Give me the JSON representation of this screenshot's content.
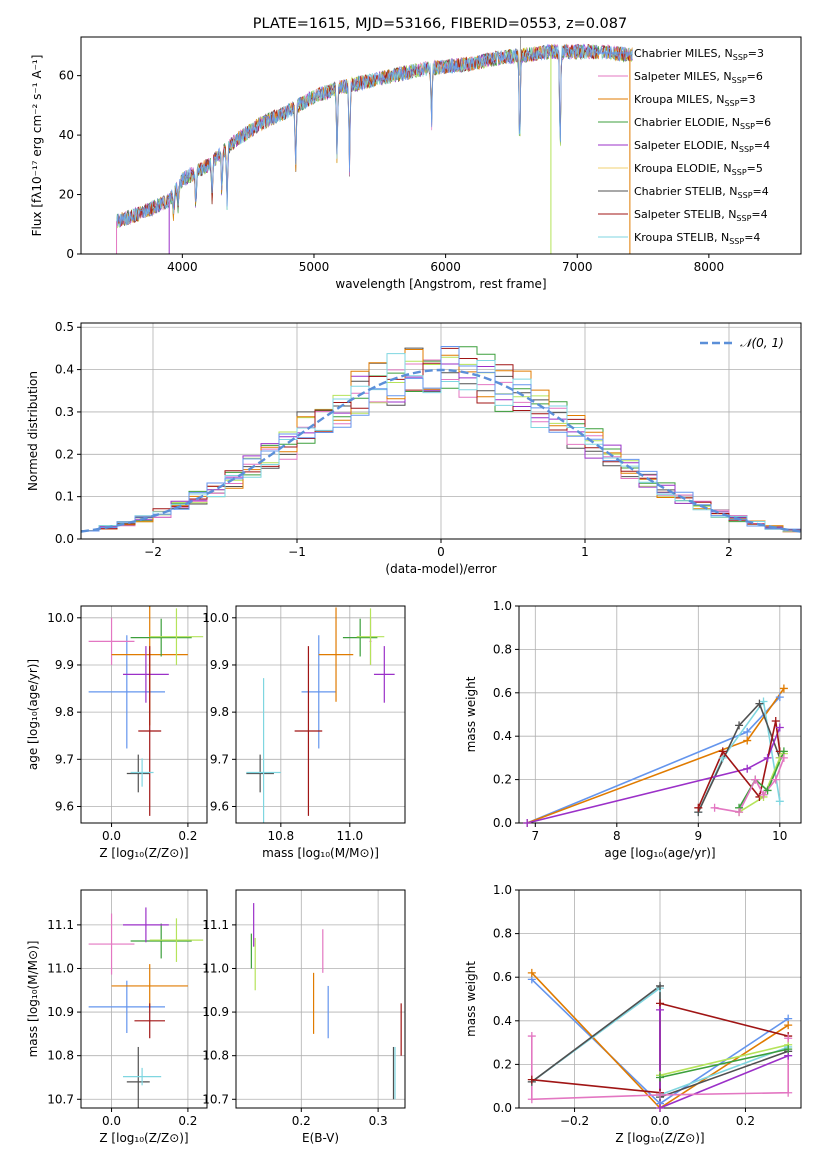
{
  "figure": {
    "title": "PLATE=1615, MJD=53166, FIBERID=0553, z=0.087"
  },
  "colors": {
    "series": [
      "#6495ED",
      "#E377C2",
      "#E07B00",
      "#3C9F3C",
      "#9B30C8",
      "#F0D070",
      "#505050",
      "#A01515",
      "#7FD6E0"
    ],
    "lime": "#B5E35A",
    "gauss": "#5B8FD8",
    "grid": "#b0b0b0"
  },
  "chart_data": [
    {
      "id": "spectrum",
      "type": "line",
      "title": "PLATE=1615, MJD=53166, FIBERID=0553, z=0.087",
      "xlabel": "wavelength [Angstrom, rest frame]",
      "ylabel": "Flux [fλ10⁻¹⁷ erg cm⁻² s⁻¹ A⁻¹]",
      "xlim": [
        3230,
        8700
      ],
      "ylim": [
        0,
        73
      ],
      "xticks": [
        4000,
        5000,
        6000,
        7000,
        8000
      ],
      "yticks": [
        0,
        20,
        40,
        60
      ],
      "continuum": [
        [
          3500,
          11
        ],
        [
          3700,
          14
        ],
        [
          3900,
          18
        ],
        [
          4000,
          25
        ],
        [
          4200,
          30
        ],
        [
          4400,
          38
        ],
        [
          4600,
          44
        ],
        [
          4800,
          48
        ],
        [
          5000,
          53
        ],
        [
          5200,
          56
        ],
        [
          5400,
          58
        ],
        [
          5600,
          60
        ],
        [
          5800,
          62
        ],
        [
          6000,
          63
        ],
        [
          6200,
          64
        ],
        [
          6400,
          66
        ],
        [
          6600,
          67
        ],
        [
          6800,
          68
        ],
        [
          7000,
          68
        ],
        [
          7200,
          68
        ],
        [
          7400,
          67
        ]
      ],
      "absorption_lines": [
        [
          3933,
          13
        ],
        [
          3968,
          12
        ],
        [
          4102,
          20
        ],
        [
          4226,
          23
        ],
        [
          4300,
          24
        ],
        [
          4340,
          34
        ],
        [
          4861,
          38
        ],
        [
          5175,
          43
        ],
        [
          5270,
          52
        ],
        [
          5893,
          35
        ],
        [
          6563,
          58
        ],
        [
          6870,
          60
        ]
      ],
      "series": [
        {
          "name": "Chabrier MILES, N_SSP=3",
          "label_main": "Chabrier MILES, N",
          "label_sub": "SSP",
          "label_end": "=3"
        },
        {
          "name": "Salpeter MILES, N_SSP=6",
          "label_main": "Salpeter MILES, N",
          "label_sub": "SSP",
          "label_end": "=6"
        },
        {
          "name": "Kroupa MILES, N_SSP=3",
          "label_main": "Kroupa MILES, N",
          "label_sub": "SSP",
          "label_end": "=3"
        },
        {
          "name": "Chabrier ELODIE, N_SSP=6",
          "label_main": "Chabrier ELODIE, N",
          "label_sub": "SSP",
          "label_end": "=6"
        },
        {
          "name": "Salpeter ELODIE, N_SSP=4",
          "label_main": "Salpeter ELODIE, N",
          "label_sub": "SSP",
          "label_end": "=4"
        },
        {
          "name": "Kroupa ELODIE, N_SSP=5",
          "label_main": "Kroupa ELODIE, N",
          "label_sub": "SSP",
          "label_end": "=5"
        },
        {
          "name": "Chabrier STELIB, N_SSP=4",
          "label_main": "Chabrier STELIB, N",
          "label_sub": "SSP",
          "label_end": "=4"
        },
        {
          "name": "Salpeter STELIB, N_SSP=4",
          "label_main": "Salpeter STELIB, N",
          "label_sub": "SSP",
          "label_end": "=4"
        },
        {
          "name": "Kroupa STELIB, N_SSP=4",
          "label_main": "Kroupa STELIB, N",
          "label_sub": "SSP",
          "label_end": "=4"
        }
      ],
      "legend": "top-right"
    },
    {
      "id": "residuals",
      "type": "line",
      "xlabel": "(data-model)/error",
      "ylabel": "Normed distribution",
      "xlim": [
        -2.5,
        2.5
      ],
      "ylim": [
        0,
        0.51
      ],
      "xticks": [
        -2,
        -1,
        0,
        1,
        2
      ],
      "yticks": [
        0.0,
        0.1,
        0.2,
        0.3,
        0.4,
        0.5
      ],
      "bin_width": 0.125,
      "grid": true,
      "legend": "top-right",
      "gauss_label": "𝒩(0, 1)"
    },
    {
      "id": "age_vs_Z",
      "type": "scatter",
      "xlabel": "Z [log₁₀(Z/Z⊙)]",
      "ylabel": "age  [log₁₀(age/yr)]",
      "xlim": [
        -0.08,
        0.25
      ],
      "ylim": [
        9.565,
        10.025
      ],
      "xticks": [
        0.0,
        0.2
      ],
      "yticks": [
        9.6,
        9.7,
        9.8,
        9.9,
        10.0
      ],
      "grid": true,
      "points": [
        {
          "c": 0,
          "x": 0.04,
          "y": 9.843,
          "xerr": 0.1,
          "yerr": 0.12
        },
        {
          "c": 1,
          "x": 0.0,
          "y": 9.95,
          "xerr": 0.06,
          "yerr": 0.05
        },
        {
          "c": 2,
          "x": 0.1,
          "y": 9.922,
          "xerr": 0.1,
          "yerr": 0.15
        },
        {
          "c": 3,
          "x": 0.13,
          "y": 9.958,
          "xerr": 0.08,
          "yerr": 0.04
        },
        {
          "c": 4,
          "x": 0.09,
          "y": 9.88,
          "xerr": 0.06,
          "yerr": 0.06
        },
        {
          "c": 9,
          "x": 0.17,
          "y": 9.96,
          "xerr": 0.07,
          "yerr": 0.06
        },
        {
          "c": 6,
          "x": 0.07,
          "y": 9.67,
          "xerr": 0.03,
          "yerr": 0.04
        },
        {
          "c": 7,
          "x": 0.1,
          "y": 9.76,
          "xerr": 0.03,
          "yerr": 0.18
        },
        {
          "c": 8,
          "x": 0.08,
          "y": 9.672,
          "xerr": 0.03,
          "yerr": 0.03
        }
      ]
    },
    {
      "id": "age_vs_mass",
      "type": "scatter",
      "xlabel": "mass [log₁₀(M/M⊙)]",
      "ylabel": "",
      "xlim": [
        10.67,
        11.16
      ],
      "ylim": [
        9.565,
        10.025
      ],
      "xticks": [
        10.8,
        11.0
      ],
      "yticks": [
        9.6,
        9.7,
        9.8,
        9.9,
        10.0
      ],
      "grid": true,
      "points": [
        {
          "c": 0,
          "x": 10.91,
          "y": 9.843,
          "xerr": 0.05,
          "yerr": 0.12
        },
        {
          "c": 1,
          "x": 11.06,
          "y": 9.95,
          "xerr": 0.003,
          "yerr": 0.05
        },
        {
          "c": 2,
          "x": 10.96,
          "y": 9.922,
          "xerr": 0.05,
          "yerr": 0.1
        },
        {
          "c": 3,
          "x": 11.03,
          "y": 9.958,
          "xerr": 0.05,
          "yerr": 0.04
        },
        {
          "c": 4,
          "x": 11.1,
          "y": 9.88,
          "xerr": 0.03,
          "yerr": 0.06
        },
        {
          "c": 9,
          "x": 11.06,
          "y": 9.96,
          "xerr": 0.04,
          "yerr": 0.06
        },
        {
          "c": 6,
          "x": 10.74,
          "y": 9.67,
          "xerr": 0.04,
          "yerr": 0.04
        },
        {
          "c": 7,
          "x": 10.88,
          "y": 9.76,
          "xerr": 0.04,
          "yerr": 0.18
        },
        {
          "c": 8,
          "x": 10.75,
          "y": 9.672,
          "xerr": 0.05,
          "yerr": 0.2
        }
      ]
    },
    {
      "id": "weight_vs_age",
      "type": "line",
      "xlabel": "age  [log₁₀(age/yr)]",
      "ylabel": "mass weight",
      "xlim": [
        6.8,
        10.26
      ],
      "ylim": [
        0,
        1
      ],
      "xticks": [
        7,
        8,
        9,
        10
      ],
      "yticks": [
        0.0,
        0.2,
        0.4,
        0.6,
        0.8,
        1.0
      ],
      "grid": true,
      "series": [
        {
          "c": 0,
          "pts": [
            [
              6.9,
              0.0
            ],
            [
              9.6,
              0.42
            ],
            [
              10.0,
              0.58
            ]
          ]
        },
        {
          "c": 2,
          "pts": [
            [
              6.9,
              0.0
            ],
            [
              9.6,
              0.38
            ],
            [
              10.05,
              0.62
            ]
          ]
        },
        {
          "c": 8,
          "pts": [
            [
              9.0,
              0.05
            ],
            [
              9.3,
              0.3
            ],
            [
              9.8,
              0.56
            ],
            [
              10.0,
              0.1
            ]
          ]
        },
        {
          "c": 6,
          "pts": [
            [
              9.0,
              0.05
            ],
            [
              9.5,
              0.45
            ],
            [
              9.75,
              0.55
            ],
            [
              10.0,
              0.3
            ]
          ]
        },
        {
          "c": 4,
          "pts": [
            [
              6.9,
              0.0
            ],
            [
              9.6,
              0.25
            ],
            [
              9.85,
              0.3
            ],
            [
              10.0,
              0.44
            ]
          ]
        },
        {
          "c": 7,
          "pts": [
            [
              9.0,
              0.07
            ],
            [
              9.3,
              0.33
            ],
            [
              9.75,
              0.12
            ],
            [
              9.95,
              0.47
            ],
            [
              10.0,
              0.33
            ]
          ]
        },
        {
          "c": 9,
          "pts": [
            [
              9.5,
              0.05
            ],
            [
              9.8,
              0.12
            ],
            [
              10.0,
              0.3
            ],
            [
              10.05,
              0.32
            ]
          ]
        },
        {
          "c": 3,
          "pts": [
            [
              9.5,
              0.07
            ],
            [
              9.7,
              0.2
            ],
            [
              9.85,
              0.15
            ],
            [
              10.05,
              0.33
            ]
          ]
        },
        {
          "c": 1,
          "pts": [
            [
              9.2,
              0.07
            ],
            [
              9.5,
              0.05
            ],
            [
              9.7,
              0.2
            ],
            [
              9.8,
              0.13
            ],
            [
              9.95,
              0.2
            ],
            [
              10.05,
              0.3
            ]
          ]
        }
      ]
    },
    {
      "id": "mass_vs_Z",
      "type": "scatter",
      "xlabel": "Z [log₁₀(Z/Z⊙)]",
      "ylabel": "mass [log₁₀(M/M⊙)]",
      "xlim": [
        -0.08,
        0.25
      ],
      "ylim": [
        10.68,
        11.18
      ],
      "xticks": [
        0.0,
        0.2
      ],
      "yticks": [
        10.7,
        10.8,
        10.9,
        11.0,
        11.1
      ],
      "grid": true,
      "points": [
        {
          "c": 0,
          "x": 0.04,
          "y": 10.912,
          "xerr": 0.1,
          "yerr": 0.06
        },
        {
          "c": 1,
          "x": 0.0,
          "y": 11.056,
          "xerr": 0.06,
          "yerr": 0.07
        },
        {
          "c": 2,
          "x": 0.1,
          "y": 10.96,
          "xerr": 0.1,
          "yerr": 0.05
        },
        {
          "c": 3,
          "x": 0.13,
          "y": 11.063,
          "xerr": 0.08,
          "yerr": 0.04
        },
        {
          "c": 4,
          "x": 0.09,
          "y": 11.1,
          "xerr": 0.06,
          "yerr": 0.04
        },
        {
          "c": 9,
          "x": 0.17,
          "y": 11.065,
          "xerr": 0.07,
          "yerr": 0.05
        },
        {
          "c": 6,
          "x": 0.07,
          "y": 10.74,
          "xerr": 0.03,
          "yerr": 0.08
        },
        {
          "c": 7,
          "x": 0.1,
          "y": 10.88,
          "xerr": 0.04,
          "yerr": 0.04
        },
        {
          "c": 8,
          "x": 0.08,
          "y": 10.752,
          "xerr": 0.05,
          "yerr": 0.02
        }
      ]
    },
    {
      "id": "mass_vs_ebv",
      "type": "scatter",
      "xlabel": "E(B-V)",
      "ylabel": "",
      "xlim": [
        0.115,
        0.335
      ],
      "ylim": [
        10.68,
        11.18
      ],
      "xticks": [
        0.2,
        0.3
      ],
      "yticks": [
        10.7,
        10.8,
        10.9,
        11.0,
        11.1
      ],
      "grid": true,
      "points": [
        {
          "c": 0,
          "x": 0.235,
          "y": 10.9,
          "xerr": 0.0,
          "yerr": 0.06
        },
        {
          "c": 1,
          "x": 0.228,
          "y": 11.04,
          "xerr": 0.0,
          "yerr": 0.05
        },
        {
          "c": 2,
          "x": 0.216,
          "y": 10.92,
          "xerr": 0.0,
          "yerr": 0.07
        },
        {
          "c": 3,
          "x": 0.135,
          "y": 11.04,
          "xerr": 0.0,
          "yerr": 0.04
        },
        {
          "c": 4,
          "x": 0.138,
          "y": 11.1,
          "xerr": 0.0,
          "yerr": 0.05
        },
        {
          "c": 9,
          "x": 0.14,
          "y": 11.01,
          "xerr": 0.0,
          "yerr": 0.06
        },
        {
          "c": 6,
          "x": 0.32,
          "y": 10.76,
          "xerr": 0.0,
          "yerr": 0.06
        },
        {
          "c": 7,
          "x": 0.33,
          "y": 10.86,
          "xerr": 0.0,
          "yerr": 0.06
        },
        {
          "c": 8,
          "x": 0.322,
          "y": 10.76,
          "xerr": 0.0,
          "yerr": 0.06
        }
      ]
    },
    {
      "id": "weight_vs_Z",
      "type": "line",
      "xlabel": "Z [log₁₀(Z/Z⊙)]",
      "ylabel": "mass weight",
      "xlim": [
        -0.33,
        0.33
      ],
      "ylim": [
        0,
        1
      ],
      "xticks": [
        -0.2,
        0.0,
        0.2
      ],
      "yticks": [
        0.0,
        0.2,
        0.4,
        0.6,
        0.8,
        1.0
      ],
      "grid": true,
      "series": [
        {
          "c": 0,
          "pts": [
            [
              -0.3,
              0.59
            ],
            [
              0.0,
              0.02
            ],
            [
              0.3,
              0.41
            ]
          ]
        },
        {
          "c": 2,
          "pts": [
            [
              -0.3,
              0.62
            ],
            [
              0.0,
              0.0
            ],
            [
              0.3,
              0.38
            ]
          ]
        },
        {
          "c": 8,
          "pts": [
            [
              -0.3,
              0.12
            ],
            [
              0.0,
              0.55
            ],
            [
              0.0,
              0.06
            ],
            [
              0.3,
              0.28
            ]
          ]
        },
        {
          "c": 6,
          "pts": [
            [
              -0.3,
              0.12
            ],
            [
              0.0,
              0.56
            ],
            [
              0.0,
              0.05
            ],
            [
              0.3,
              0.26
            ]
          ]
        },
        {
          "c": 7,
          "pts": [
            [
              -0.3,
              0.13
            ],
            [
              0.0,
              0.07
            ],
            [
              0.0,
              0.48
            ],
            [
              0.3,
              0.33
            ]
          ]
        },
        {
          "c": 4,
          "pts": [
            [
              0.0,
              0.45
            ],
            [
              0.0,
              0.0
            ],
            [
              0.3,
              0.24
            ]
          ]
        },
        {
          "c": 9,
          "pts": [
            [
              0.0,
              0.15
            ],
            [
              0.3,
              0.29
            ]
          ]
        },
        {
          "c": 3,
          "pts": [
            [
              0.0,
              0.14
            ],
            [
              0.3,
              0.27
            ]
          ]
        },
        {
          "c": 1,
          "pts": [
            [
              -0.3,
              0.33
            ],
            [
              -0.3,
              0.04
            ],
            [
              0.0,
              0.06
            ],
            [
              0.3,
              0.07
            ],
            [
              0.3,
              0.32
            ]
          ]
        }
      ]
    }
  ]
}
